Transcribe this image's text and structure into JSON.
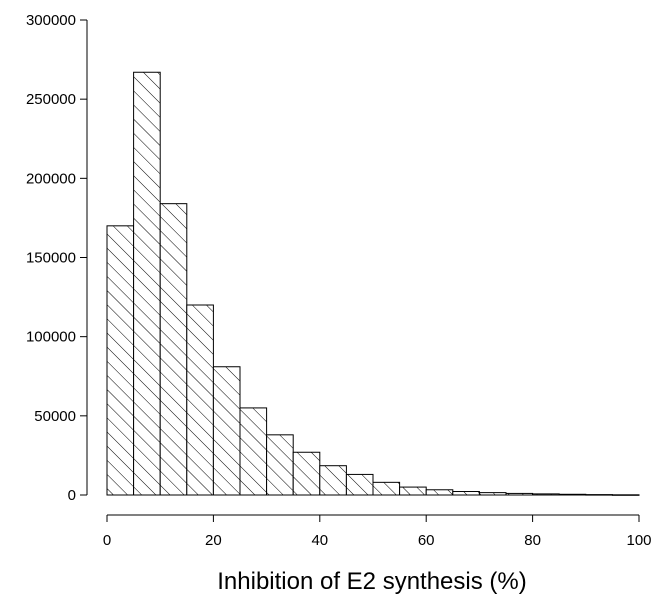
{
  "chart_data": {
    "type": "bar",
    "subtype": "histogram",
    "title": "",
    "xlabel": "Inhibition of E2 synthesis (%)",
    "ylabel": "",
    "xlim": [
      0,
      100
    ],
    "ylim": [
      0,
      300000
    ],
    "x_ticks": [
      "0",
      "20",
      "40",
      "60",
      "80",
      "100"
    ],
    "y_ticks": [
      "0",
      "50000",
      "100000",
      "150000",
      "200000",
      "250000",
      "300000"
    ],
    "bin_width": 5,
    "bins": [
      {
        "start": 0,
        "end": 5,
        "count": 170000
      },
      {
        "start": 5,
        "end": 10,
        "count": 267000
      },
      {
        "start": 10,
        "end": 15,
        "count": 184000
      },
      {
        "start": 15,
        "end": 20,
        "count": 120000
      },
      {
        "start": 20,
        "end": 25,
        "count": 81000
      },
      {
        "start": 25,
        "end": 30,
        "count": 55000
      },
      {
        "start": 30,
        "end": 35,
        "count": 38000
      },
      {
        "start": 35,
        "end": 40,
        "count": 27000
      },
      {
        "start": 40,
        "end": 45,
        "count": 18500
      },
      {
        "start": 45,
        "end": 50,
        "count": 13000
      },
      {
        "start": 50,
        "end": 55,
        "count": 8000
      },
      {
        "start": 55,
        "end": 60,
        "count": 5000
      },
      {
        "start": 60,
        "end": 65,
        "count": 3300
      },
      {
        "start": 65,
        "end": 70,
        "count": 2200
      },
      {
        "start": 70,
        "end": 75,
        "count": 1500
      },
      {
        "start": 75,
        "end": 80,
        "count": 1000
      },
      {
        "start": 80,
        "end": 85,
        "count": 700
      },
      {
        "start": 85,
        "end": 90,
        "count": 450
      },
      {
        "start": 90,
        "end": 95,
        "count": 250
      },
      {
        "start": 95,
        "end": 100,
        "count": 120
      }
    ],
    "fill_pattern": "diagonal-hatch",
    "colors": {
      "stroke": "#000000",
      "background": "#ffffff"
    },
    "grid": false,
    "legend": "none"
  }
}
